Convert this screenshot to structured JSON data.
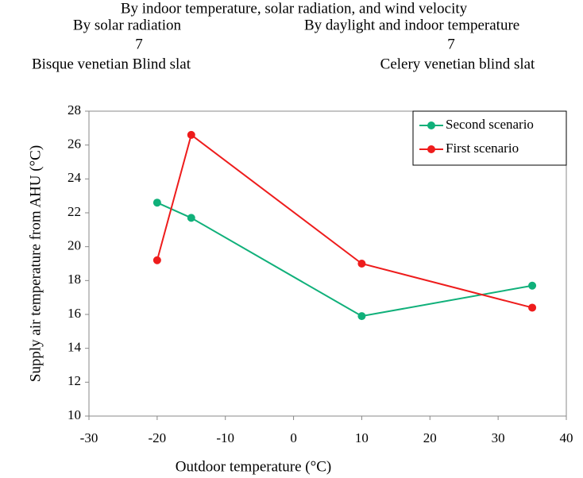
{
  "header": {
    "title": "By indoor temperature, solar radiation, and wind velocity",
    "left": {
      "method": "By solar radiation",
      "number": "7",
      "slat": "Bisque venetian Blind slat"
    },
    "right": {
      "method": "By daylight and indoor temperature",
      "number": "7",
      "slat": "Celery venetian blind slat"
    }
  },
  "chart_data": {
    "type": "line",
    "x_label": "Outdoor temperature (°C)",
    "y_label": "Supply air temperature from AHU (°C)",
    "xlim": [
      -30,
      40
    ],
    "xticks": [
      -30,
      -20,
      -10,
      0,
      10,
      20,
      30,
      40
    ],
    "ylim": [
      10,
      28
    ],
    "yticks": [
      10,
      12,
      14,
      16,
      18,
      20,
      22,
      24,
      26,
      28
    ],
    "legend": "top-right",
    "grid": false,
    "series": [
      {
        "name": "Second scenario",
        "color": "#10b07a",
        "x": [
          -20,
          -15,
          10,
          35
        ],
        "values": [
          22.6,
          21.7,
          15.9,
          17.7
        ]
      },
      {
        "name": "First scenario",
        "color": "#ee1c1c",
        "x": [
          -20,
          -15,
          10,
          35
        ],
        "values": [
          19.2,
          26.6,
          19.0,
          16.4
        ]
      }
    ]
  }
}
